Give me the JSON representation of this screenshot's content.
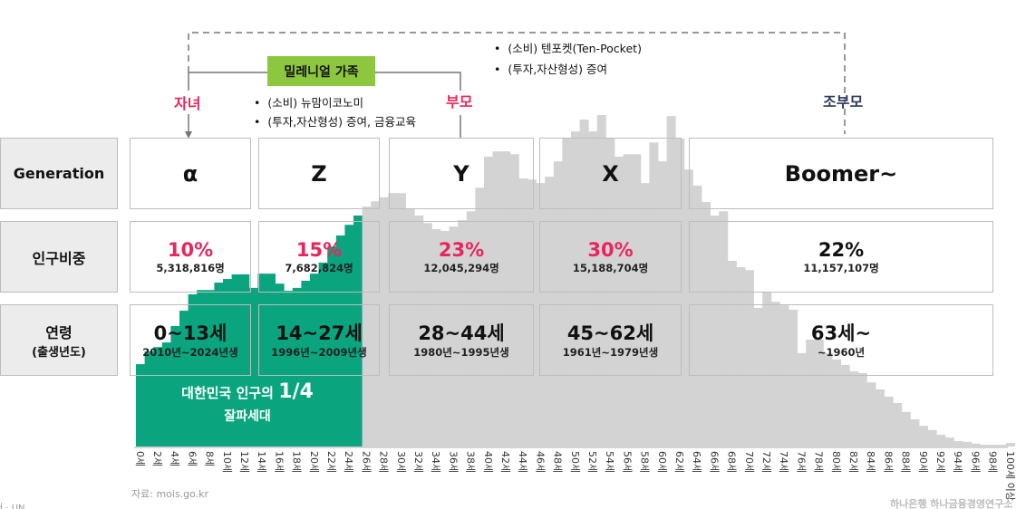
{
  "colors": {
    "accent_green": "#0aa57f",
    "bar_grey": "#d3d3d3",
    "pink": "#e8265e",
    "navy": "#2e3a5c",
    "millennial_green": "#8dc63f"
  },
  "family": {
    "millennial_label": "밀레니얼 가족",
    "child": "자녀",
    "parent": "부모",
    "grandparent": "조부모",
    "parent_notes": [
      "(소비) 뉴맘이코노미",
      "(투자,자산형성) 증여, 금융교육"
    ],
    "grandparent_notes": [
      "(소비) 텐포켓(Ten-Pocket)",
      "(투자,자산형성) 증여"
    ]
  },
  "row_labels": {
    "generation": "Generation",
    "share": "인구비중",
    "age": "연령",
    "age_sub": "(출생년도)"
  },
  "generations": [
    {
      "name": "α",
      "pct": "10%",
      "count": "5,318,816명",
      "ages": "0~13세",
      "years": "2010년~2024년생"
    },
    {
      "name": "Z",
      "pct": "15%",
      "count": "7,682,824명",
      "ages": "14~27세",
      "years": "1996년~2009년생"
    },
    {
      "name": "Y",
      "pct": "23%",
      "count": "12,045,294명",
      "ages": "28~44세",
      "years": "1980년~1995년생"
    },
    {
      "name": "X",
      "pct": "30%",
      "count": "15,188,704명",
      "ages": "45~62세",
      "years": "1961년~1979년생"
    },
    {
      "name": "Boomer~",
      "pct": "22%",
      "count": "11,157,107명",
      "ages": "63세~",
      "years": "~1960년"
    }
  ],
  "highlight": {
    "line1": "대한민국 인구의",
    "fraction": "1/4",
    "line2": "잘파세대"
  },
  "source": "자료: mois.go.kr",
  "left_footer": "처 · UN",
  "logo_text": "하나은행 하나금융경영연구소",
  "chart_data": {
    "type": "bar",
    "xlabel": "",
    "ylabel": "",
    "note": "values estimated from bar heights (no y-axis printed), approx. thousands of persons",
    "categories": [
      "0세",
      "1세",
      "2세",
      "3세",
      "4세",
      "5세",
      "6세",
      "7세",
      "8세",
      "9세",
      "10세",
      "11세",
      "12세",
      "13세",
      "14세",
      "15세",
      "16세",
      "17세",
      "18세",
      "19세",
      "20세",
      "21세",
      "22세",
      "23세",
      "24세",
      "25세",
      "26세",
      "27세",
      "28세",
      "29세",
      "30세",
      "31세",
      "32세",
      "33세",
      "34세",
      "35세",
      "36세",
      "37세",
      "38세",
      "39세",
      "40세",
      "41세",
      "42세",
      "43세",
      "44세",
      "45세",
      "46세",
      "47세",
      "48세",
      "49세",
      "50세",
      "51세",
      "52세",
      "53세",
      "54세",
      "55세",
      "56세",
      "57세",
      "58세",
      "59세",
      "60세",
      "61세",
      "62세",
      "63세",
      "64세",
      "65세",
      "66세",
      "67세",
      "68세",
      "69세",
      "70세",
      "71세",
      "72세",
      "73세",
      "74세",
      "75세",
      "76세",
      "77세",
      "78세",
      "79세",
      "80세",
      "81세",
      "82세",
      "83세",
      "84세",
      "85세",
      "86세",
      "87세",
      "88세",
      "89세",
      "90세",
      "91세",
      "92세",
      "93세",
      "94세",
      "95세",
      "96세",
      "97세",
      "98세",
      "99세",
      "100세 이상"
    ],
    "tick_labels": [
      "0세",
      "2세",
      "4세",
      "6세",
      "8세",
      "10세",
      "12세",
      "14세",
      "16세",
      "18세",
      "20세",
      "22세",
      "24세",
      "26세",
      "28세",
      "30세",
      "32세",
      "34세",
      "36세",
      "38세",
      "40세",
      "42세",
      "44세",
      "46세",
      "48세",
      "50세",
      "52세",
      "54세",
      "56세",
      "58세",
      "60세",
      "62세",
      "64세",
      "66세",
      "68세",
      "70세",
      "72세",
      "74세",
      "76세",
      "78세",
      "80세",
      "82세",
      "84세",
      "86세",
      "88세",
      "90세",
      "92세",
      "94세",
      "96세",
      "98세",
      "100세 이상"
    ],
    "values": [
      231,
      267,
      279,
      292,
      338,
      381,
      427,
      439,
      439,
      460,
      470,
      483,
      483,
      445,
      485,
      485,
      457,
      437,
      445,
      465,
      485,
      516,
      561,
      592,
      622,
      648,
      673,
      688,
      699,
      711,
      711,
      668,
      648,
      627,
      610,
      605,
      617,
      635,
      660,
      726,
      813,
      828,
      828,
      820,
      752,
      749,
      739,
      757,
      800,
      866,
      884,
      917,
      884,
      930,
      866,
      813,
      820,
      820,
      739,
      853,
      800,
      927,
      864,
      777,
      732,
      686,
      648,
      660,
      521,
      503,
      495,
      389,
      432,
      406,
      396,
      384,
      262,
      300,
      300,
      262,
      244,
      229,
      211,
      206,
      180,
      160,
      140,
      122,
      97,
      76,
      58,
      46,
      33,
      25,
      15,
      13,
      8,
      5,
      5,
      5,
      10
    ],
    "highlighted_range": [
      "0세",
      "25세"
    ],
    "grid": false,
    "legend": "none"
  }
}
